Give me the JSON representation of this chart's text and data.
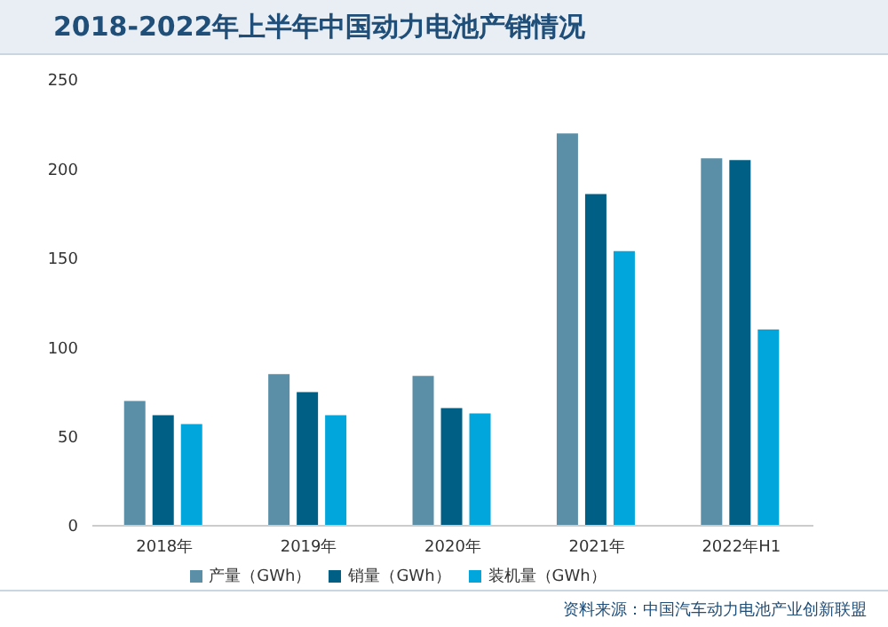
{
  "chart_data": {
    "type": "bar",
    "title": "2018-2022年上半年中国动力电池产销情况",
    "categories": [
      "2018年",
      "2019年",
      "2020年",
      "2021年",
      "2022年H1"
    ],
    "series": [
      {
        "name": "产量（GWh）",
        "color": "#5b8fa8",
        "values": [
          70,
          85,
          84,
          220,
          206
        ]
      },
      {
        "name": "销量（GWh）",
        "color": "#005f85",
        "values": [
          62,
          75,
          66,
          186,
          205
        ]
      },
      {
        "name": "装机量（GWh）",
        "color": "#00a6dc",
        "values": [
          57,
          62,
          63,
          154,
          110
        ]
      }
    ],
    "ylim": [
      0,
      250
    ],
    "yticks": [
      0,
      50,
      100,
      150,
      200,
      250
    ],
    "grid": false,
    "legend": "bottom",
    "annotations": [
      "资料来源：中国汽车动力电池产业创新联盟"
    ]
  }
}
